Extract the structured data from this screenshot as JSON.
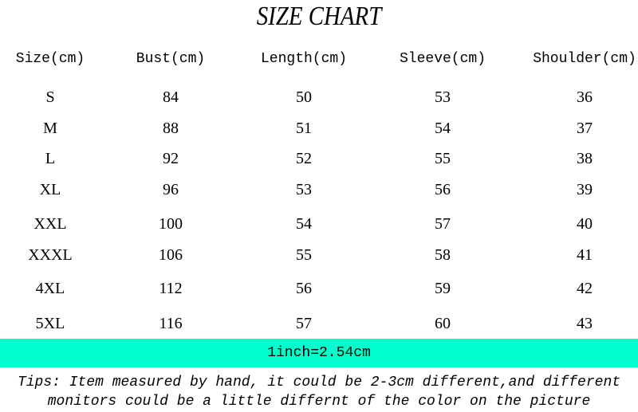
{
  "title": "SIZE CHART",
  "table": {
    "headers": [
      "Size(cm)",
      "Bust(cm)",
      "Length(cm)",
      "Sleeve(cm)",
      "Shoulder(cm)"
    ],
    "rows": [
      [
        "S",
        "84",
        "50",
        "53",
        "36"
      ],
      [
        "M",
        "88",
        "51",
        "54",
        "37"
      ],
      [
        "L",
        "92",
        "52",
        "55",
        "38"
      ],
      [
        "XL",
        "96",
        "53",
        "56",
        "39"
      ],
      [
        "XXL",
        "100",
        "54",
        "57",
        "40"
      ],
      [
        "XXXL",
        "106",
        "55",
        "58",
        "41"
      ],
      [
        "4XL",
        "112",
        "56",
        "59",
        "42"
      ],
      [
        "5XL",
        "116",
        "57",
        "60",
        "43"
      ]
    ]
  },
  "conversion_note": "1inch=2.54cm",
  "band_color": "#00ffcc",
  "tips": {
    "line1": "Tips: Item measured by hand, it could be 2-3cm different,and different",
    "line2": "monitors could be a little differnt of the color on the picture"
  }
}
